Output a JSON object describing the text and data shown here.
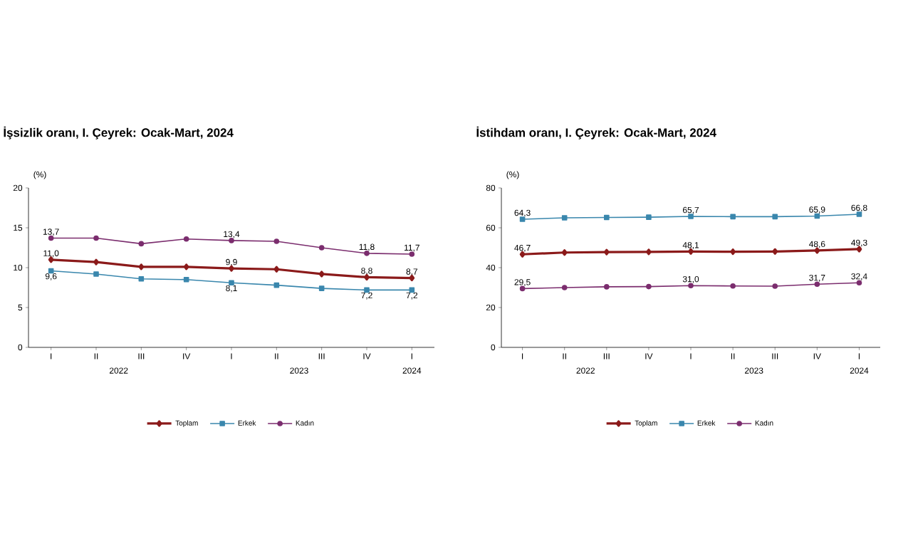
{
  "chart_data": [
    {
      "type": "line",
      "title": "İşsizlik oranı, I. Çeyrek: Ocak-Mart, 2024",
      "ylabel": "(%)",
      "categories": [
        "I",
        "II",
        "III",
        "IV",
        "I",
        "II",
        "III",
        "IV",
        "I"
      ],
      "annotations": [
        "2022",
        "2023",
        "2024"
      ],
      "ylim": [
        0,
        20
      ],
      "yticks": [
        0,
        5,
        10,
        15,
        20
      ],
      "legend": "bottom",
      "grid": false,
      "series": [
        {
          "name": "Toplam",
          "color": "#8b1a1a",
          "marker": "diamond",
          "values": [
            11.0,
            10.7,
            10.1,
            10.1,
            9.9,
            9.8,
            9.2,
            8.8,
            8.7
          ],
          "value_labels": [
            "11,0",
            null,
            null,
            null,
            "9,9",
            null,
            null,
            "8,8",
            "8,7"
          ]
        },
        {
          "name": "Erkek",
          "color": "#3a87ad",
          "marker": "square",
          "values": [
            9.6,
            9.2,
            8.6,
            8.5,
            8.1,
            7.8,
            7.4,
            7.2,
            7.2
          ],
          "value_labels": [
            "9,6",
            null,
            null,
            null,
            "8,1",
            null,
            null,
            "7,2",
            "7,2"
          ]
        },
        {
          "name": "Kadın",
          "color": "#7b2d6e",
          "marker": "circle",
          "values": [
            13.7,
            13.7,
            13.0,
            13.6,
            13.4,
            13.3,
            12.5,
            11.8,
            11.7
          ],
          "value_labels": [
            "13,7",
            null,
            null,
            null,
            "13,4",
            null,
            null,
            "11,8",
            "11,7"
          ]
        }
      ]
    },
    {
      "type": "line",
      "title": "İstihdam oranı, I. Çeyrek: Ocak-Mart, 2024",
      "ylabel": "(%)",
      "categories": [
        "I",
        "II",
        "III",
        "IV",
        "I",
        "II",
        "III",
        "IV",
        "I"
      ],
      "annotations": [
        "2022",
        "2023",
        "2024"
      ],
      "ylim": [
        0,
        80
      ],
      "yticks": [
        0,
        20,
        40,
        60,
        80
      ],
      "legend": "bottom",
      "grid": false,
      "series": [
        {
          "name": "Toplam",
          "color": "#8b1a1a",
          "marker": "diamond",
          "values": [
            46.7,
            47.6,
            47.8,
            47.9,
            48.1,
            48.0,
            48.1,
            48.6,
            49.3
          ],
          "value_labels": [
            "46,7",
            null,
            null,
            null,
            "48,1",
            null,
            null,
            "48,6",
            "49,3"
          ]
        },
        {
          "name": "Erkek",
          "color": "#3a87ad",
          "marker": "square",
          "values": [
            64.3,
            65.0,
            65.2,
            65.3,
            65.7,
            65.6,
            65.6,
            65.9,
            66.8
          ],
          "value_labels": [
            "64,3",
            null,
            null,
            null,
            "65,7",
            null,
            null,
            "65,9",
            "66,8"
          ]
        },
        {
          "name": "Kadın",
          "color": "#7b2d6e",
          "marker": "circle",
          "values": [
            29.5,
            30.0,
            30.4,
            30.5,
            31.0,
            30.8,
            30.7,
            31.7,
            32.4
          ],
          "value_labels": [
            "29,5",
            null,
            null,
            null,
            "31,0",
            null,
            null,
            "31,7",
            "32,4"
          ]
        }
      ]
    }
  ]
}
